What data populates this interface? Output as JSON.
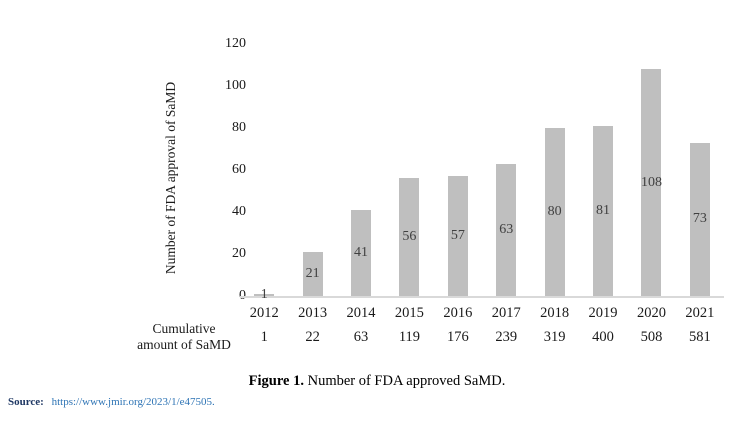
{
  "chart_data": {
    "type": "bar",
    "categories": [
      "2012",
      "2013",
      "2014",
      "2015",
      "2016",
      "2017",
      "2018",
      "2019",
      "2020",
      "2021"
    ],
    "values": [
      1,
      21,
      41,
      56,
      57,
      63,
      80,
      81,
      108,
      73
    ],
    "cumulative_values": [
      1,
      22,
      63,
      119,
      176,
      239,
      319,
      400,
      508,
      581
    ],
    "cumulative_label_line1": "Cumulative",
    "cumulative_label_line2": "amount of SaMD",
    "ylabel": "Number of FDA approval of SaMD",
    "yticks": [
      0,
      20,
      40,
      60,
      80,
      100,
      120
    ],
    "ylim": [
      0,
      120
    ],
    "bar_color": "#bfbfbf",
    "bar_label_color": "#404040",
    "axis_line_color": "#d9d9d9",
    "grid": "off",
    "legend": "none"
  },
  "caption": {
    "label": "Figure 1.",
    "text": "Number of FDA approved SaMD."
  },
  "source": {
    "label": "Source:",
    "url": "https://www.jmir.org/2023/1/e47505."
  }
}
